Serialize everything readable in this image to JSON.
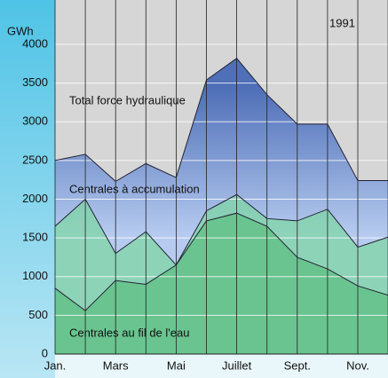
{
  "chart_data": {
    "type": "area",
    "unit_label": "GWh",
    "annotation": "1991",
    "categories": [
      "Jan.",
      null,
      "Mars",
      null,
      "Mai",
      null,
      "Juillet",
      null,
      "Sept.",
      null,
      "Nov.",
      null
    ],
    "series": [
      {
        "name": "Total force hydraulique",
        "color": "#5f82c4",
        "values": [
          2500,
          2580,
          2230,
          2460,
          2280,
          3540,
          3820,
          3350,
          2970,
          2970,
          2240,
          2240
        ]
      },
      {
        "name": "Centrales à accumulation",
        "color": "#7fd6a6",
        "values": [
          1650,
          2000,
          1300,
          1580,
          1150,
          1850,
          2060,
          1750,
          1720,
          1870,
          1380,
          1510
        ]
      },
      {
        "name": "Centrales au fil de l'eau",
        "color": "#5fbf82",
        "values": [
          850,
          560,
          950,
          900,
          1150,
          1720,
          1820,
          1650,
          1250,
          1100,
          880,
          760
        ]
      }
    ],
    "ylim": [
      0,
      4000
    ],
    "yticks": [
      0,
      500,
      1000,
      1500,
      2000,
      2500,
      3000,
      3500,
      4000
    ],
    "grid": true
  }
}
